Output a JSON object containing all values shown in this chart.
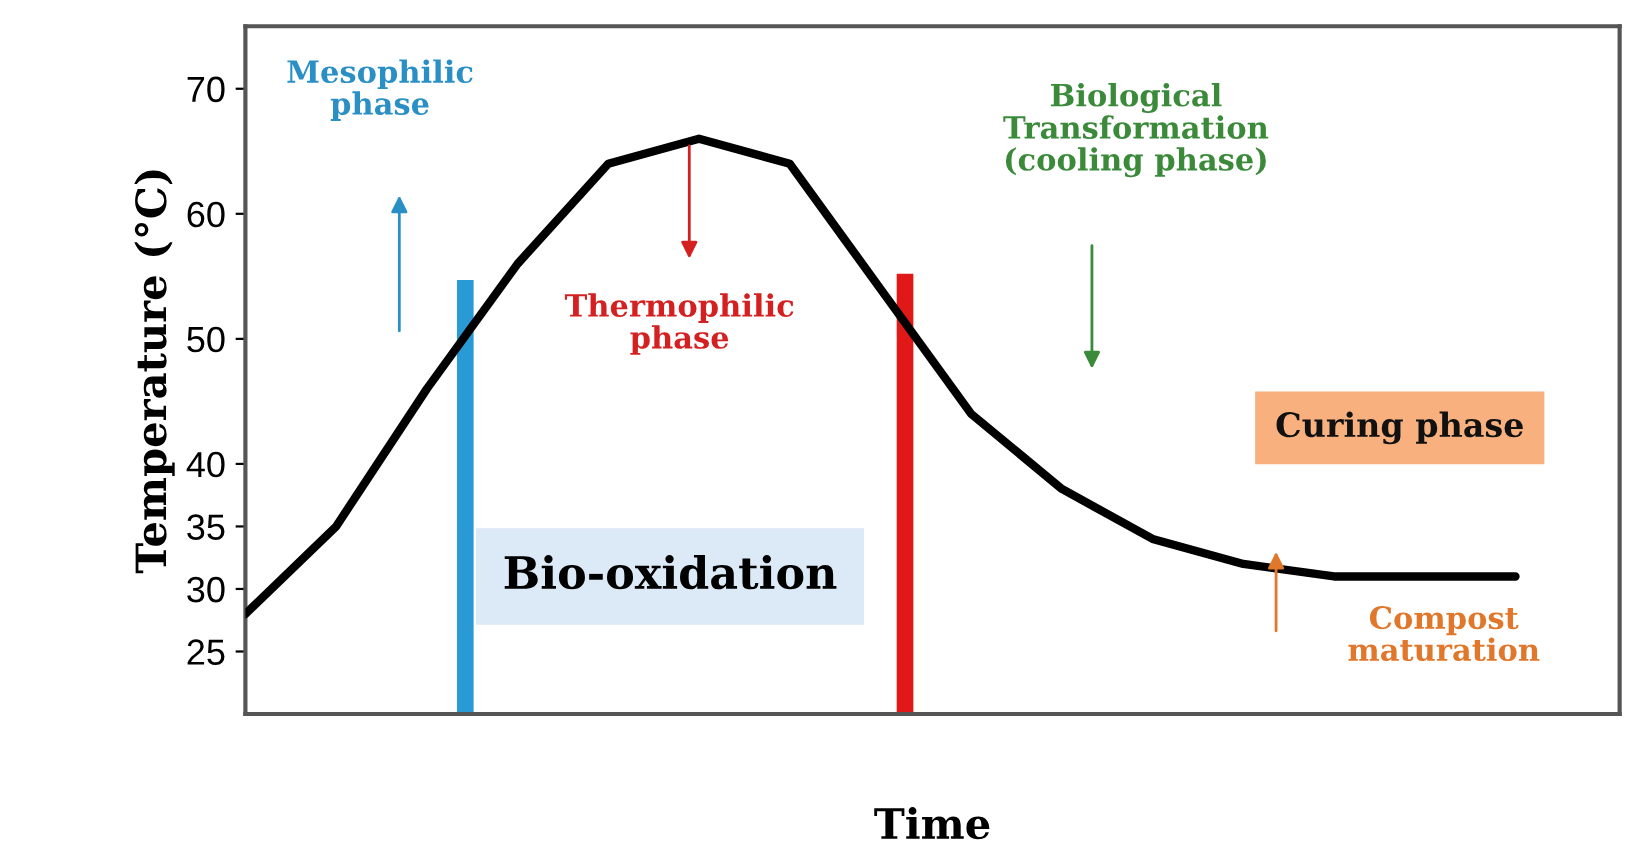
{
  "chart_data": {
    "type": "line",
    "xlabel": "Time",
    "ylabel": "Temperature (°C)",
    "categories": [
      null,
      null,
      null,
      null,
      null,
      null,
      null,
      null,
      null,
      null,
      null,
      null,
      null,
      null,
      null
    ],
    "series": [
      {
        "color": "#000000",
        "values": [
          28,
          35,
          46,
          56,
          64,
          66,
          64,
          54,
          44,
          38,
          34,
          32,
          31,
          31,
          31
        ]
      }
    ],
    "ylim": [
      20,
      75
    ],
    "yticks": [
      25,
      30,
      35,
      40,
      50,
      60,
      70
    ],
    "grid": false,
    "legend": false,
    "marker": "none",
    "line_style": "solid",
    "annotations": [
      "Mesophilic\nphase",
      "Thermophilic\nphase",
      "Biological\nTransformation\n(cooling phase)",
      "Curing phase",
      "Compost\nmaturation",
      "Bio-oxidation"
    ]
  }
}
